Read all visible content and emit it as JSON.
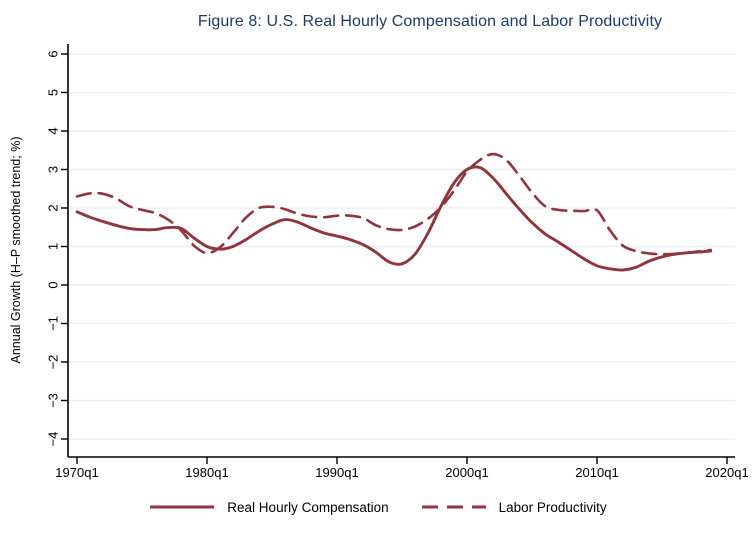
{
  "colors": {
    "line": "#90353b",
    "title": "#1f3a68",
    "grid": "#e8eff4",
    "axis": "#000000",
    "text": "#000000",
    "background": "#ffffff"
  },
  "chart_data": {
    "type": "line",
    "title": "Figure 8: U.S. Real Hourly Compensation and Labor Productivity",
    "xlabel": "",
    "ylabel": "Annual Growth (H–P smoothed trend; %)",
    "ylim": [
      -4.45,
      6.25
    ],
    "xlim": [
      1969.3,
      2020.6
    ],
    "y_ticks": [
      6,
      5,
      4,
      3,
      2,
      1,
      0,
      -1,
      -2,
      -3,
      -4
    ],
    "x_tick_labels": [
      "1970q1",
      "1980q1",
      "1990q1",
      "2000q1",
      "2010q1",
      "2020q1"
    ],
    "x_tick_years": [
      1970,
      1980,
      1990,
      2000,
      2010,
      2020
    ],
    "grid": true,
    "legend_position": "bottom",
    "series": [
      {
        "name": "Real Hourly Compensation",
        "style": "solid",
        "points": [
          [
            1970,
            1.9
          ],
          [
            1971,
            1.76
          ],
          [
            1972,
            1.65
          ],
          [
            1973,
            1.55
          ],
          [
            1974,
            1.47
          ],
          [
            1975,
            1.44
          ],
          [
            1976,
            1.44
          ],
          [
            1977,
            1.49
          ],
          [
            1978,
            1.47
          ],
          [
            1979,
            1.22
          ],
          [
            1980,
            1.0
          ],
          [
            1981,
            0.93
          ],
          [
            1982,
            1.0
          ],
          [
            1983,
            1.18
          ],
          [
            1984,
            1.4
          ],
          [
            1985,
            1.58
          ],
          [
            1986,
            1.7
          ],
          [
            1987,
            1.63
          ],
          [
            1988,
            1.48
          ],
          [
            1989,
            1.35
          ],
          [
            1990,
            1.27
          ],
          [
            1991,
            1.18
          ],
          [
            1992,
            1.05
          ],
          [
            1993,
            0.85
          ],
          [
            1994,
            0.6
          ],
          [
            1995,
            0.55
          ],
          [
            1996,
            0.8
          ],
          [
            1997,
            1.35
          ],
          [
            1998,
            2.05
          ],
          [
            1999,
            2.65
          ],
          [
            2000,
            3.0
          ],
          [
            2001,
            3.05
          ],
          [
            2002,
            2.78
          ],
          [
            2003,
            2.38
          ],
          [
            2004,
            1.98
          ],
          [
            2005,
            1.62
          ],
          [
            2006,
            1.33
          ],
          [
            2007,
            1.12
          ],
          [
            2008,
            0.9
          ],
          [
            2009,
            0.68
          ],
          [
            2010,
            0.5
          ],
          [
            2011,
            0.42
          ],
          [
            2012,
            0.39
          ],
          [
            2013,
            0.46
          ],
          [
            2014,
            0.62
          ],
          [
            2015,
            0.73
          ],
          [
            2016,
            0.8
          ],
          [
            2017,
            0.84
          ],
          [
            2018,
            0.86
          ],
          [
            2018.75,
            0.88
          ]
        ]
      },
      {
        "name": "Labor Productivity",
        "style": "dashed",
        "points": [
          [
            1970,
            2.3
          ],
          [
            1971,
            2.38
          ],
          [
            1972,
            2.37
          ],
          [
            1973,
            2.25
          ],
          [
            1974,
            2.05
          ],
          [
            1975,
            1.95
          ],
          [
            1976,
            1.87
          ],
          [
            1977,
            1.7
          ],
          [
            1978,
            1.42
          ],
          [
            1979,
            1.02
          ],
          [
            1980,
            0.83
          ],
          [
            1981,
            0.98
          ],
          [
            1982,
            1.35
          ],
          [
            1983,
            1.75
          ],
          [
            1984,
            2.0
          ],
          [
            1985,
            2.03
          ],
          [
            1986,
            1.97
          ],
          [
            1987,
            1.85
          ],
          [
            1988,
            1.78
          ],
          [
            1989,
            1.76
          ],
          [
            1990,
            1.8
          ],
          [
            1991,
            1.8
          ],
          [
            1992,
            1.74
          ],
          [
            1993,
            1.55
          ],
          [
            1994,
            1.45
          ],
          [
            1995,
            1.43
          ],
          [
            1996,
            1.52
          ],
          [
            1997,
            1.72
          ],
          [
            1998,
            2.02
          ],
          [
            1999,
            2.45
          ],
          [
            2000,
            2.95
          ],
          [
            2001,
            3.25
          ],
          [
            2002,
            3.4
          ],
          [
            2003,
            3.25
          ],
          [
            2004,
            2.85
          ],
          [
            2005,
            2.4
          ],
          [
            2006,
            2.05
          ],
          [
            2007,
            1.95
          ],
          [
            2008,
            1.93
          ],
          [
            2009,
            1.92
          ],
          [
            2010,
            1.94
          ],
          [
            2011,
            1.42
          ],
          [
            2012,
            1.02
          ],
          [
            2013,
            0.88
          ],
          [
            2014,
            0.82
          ],
          [
            2015,
            0.8
          ],
          [
            2016,
            0.81
          ],
          [
            2017,
            0.84
          ],
          [
            2018,
            0.88
          ],
          [
            2018.75,
            0.91
          ]
        ]
      }
    ]
  }
}
